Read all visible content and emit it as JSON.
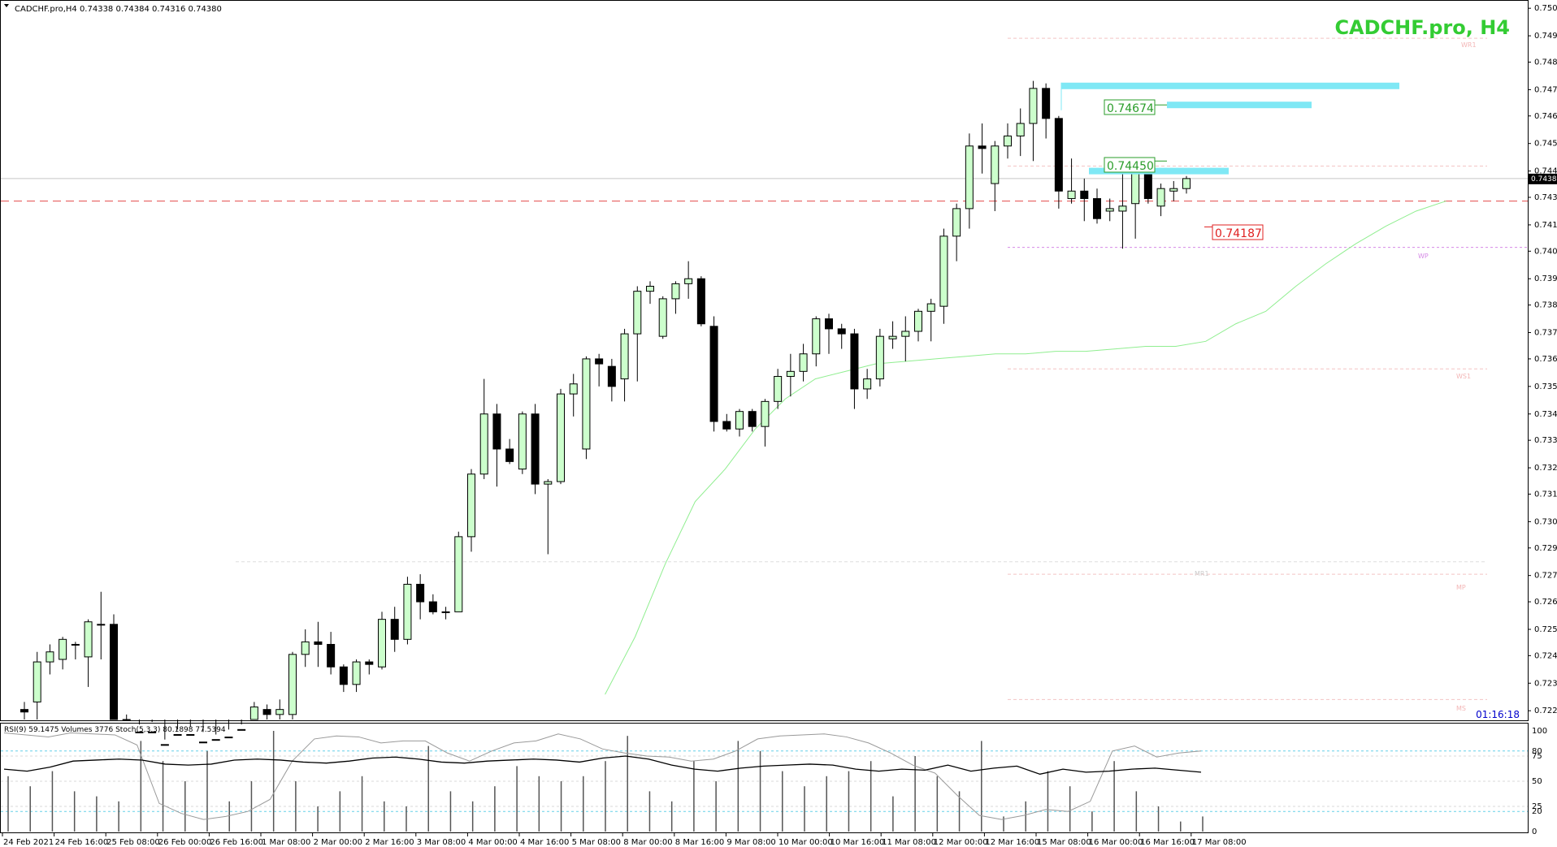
{
  "header": {
    "symbol_info": "CADCHF.pro,H4  0.74338 0.74384 0.74316 0.74380",
    "big_title": "CADCHF.pro, H4",
    "countdown": "01:16:18"
  },
  "subwindow": {
    "label": "RSI(9) 59.1475  Volumes 3776  Stoch(5,3,3) 80.1898 77.5394",
    "levels": [
      "100",
      "80",
      "75",
      "50",
      "25",
      "20",
      "0"
    ]
  },
  "colors": {
    "bull_fill": "#ccffcc",
    "bear_fill": "#000000",
    "ma": "#90ee90",
    "zone": "#7fe8f5",
    "red_line": "#e24b4b",
    "green_label": "#2a9d2a",
    "red_label": "#e02020",
    "title": "#33cc33"
  },
  "annotations": {
    "green_label_1": "0.74674",
    "green_label_2": "0.74450",
    "red_label": "0.74187",
    "current_price": "0.74380",
    "pivot_labels": {
      "wr1_top": "WR1",
      "wp": "WP",
      "ws1": "WS1",
      "mr1": "MR1",
      "mp": "MP",
      "ms": "MS"
    }
  },
  "chart_data": {
    "type": "candlestick",
    "title": "CADCHF.pro, H4",
    "price_axis": [
      "0.75060",
      "0.74950",
      "0.74845",
      "0.74735",
      "0.74630",
      "0.74520",
      "0.74410",
      "0.74305",
      "0.74195",
      "0.74090",
      "0.73980",
      "0.73875",
      "0.73765",
      "0.73660",
      "0.73550",
      "0.73440",
      "0.73335",
      "0.73225",
      "0.73120",
      "0.73010",
      "0.72905",
      "0.72795",
      "0.72690",
      "0.72580",
      "0.72475",
      "0.72365",
      "0.72255"
    ],
    "ylim": [
      0.7222,
      0.7508
    ],
    "time_axis": [
      "24 Feb 2021",
      "24 Feb 16:00",
      "25 Feb 08:00",
      "26 Feb 00:00",
      "26 Feb 16:00",
      "1 Mar 08:00",
      "2 Mar 00:00",
      "2 Mar 16:00",
      "3 Mar 08:00",
      "4 Mar 00:00",
      "4 Mar 16:00",
      "5 Mar 08:00",
      "8 Mar 00:00",
      "8 Mar 16:00",
      "9 Mar 08:00",
      "10 Mar 00:00",
      "10 Mar 16:00",
      "11 Mar 08:00",
      "12 Mar 00:00",
      "12 Mar 16:00",
      "15 Mar 08:00",
      "16 Mar 00:00",
      "16 Mar 16:00",
      "17 Mar 08:00"
    ],
    "candles": [
      {
        "o": 0.7226,
        "h": 0.7229,
        "l": 0.7222,
        "c": 0.7225
      },
      {
        "o": 0.7229,
        "h": 0.7249,
        "l": 0.7222,
        "c": 0.7245
      },
      {
        "o": 0.7245,
        "h": 0.7252,
        "l": 0.724,
        "c": 0.7249
      },
      {
        "o": 0.7246,
        "h": 0.7255,
        "l": 0.7242,
        "c": 0.7254
      },
      {
        "o": 0.7252,
        "h": 0.7253,
        "l": 0.7246,
        "c": 0.7252
      },
      {
        "o": 0.7247,
        "h": 0.7262,
        "l": 0.7235,
        "c": 0.7261
      },
      {
        "o": 0.726,
        "h": 0.7273,
        "l": 0.7246,
        "c": 0.726
      },
      {
        "o": 0.726,
        "h": 0.7264,
        "l": 0.7215,
        "c": 0.7222
      },
      {
        "o": 0.7222,
        "h": 0.7224,
        "l": 0.721,
        "c": 0.7214
      },
      {
        "o": 0.7214,
        "h": 0.722,
        "l": 0.721,
        "c": 0.7217
      },
      {
        "o": 0.7217,
        "h": 0.7221,
        "l": 0.7208,
        "c": 0.721
      },
      {
        "o": 0.721,
        "h": 0.7214,
        "l": 0.7205,
        "c": 0.7212
      },
      {
        "o": 0.7212,
        "h": 0.7218,
        "l": 0.7208,
        "c": 0.7216
      },
      {
        "o": 0.7216,
        "h": 0.7219,
        "l": 0.721,
        "c": 0.7213
      },
      {
        "o": 0.7213,
        "h": 0.7217,
        "l": 0.7208,
        "c": 0.7211
      },
      {
        "o": 0.7211,
        "h": 0.7216,
        "l": 0.7207,
        "c": 0.7214
      },
      {
        "o": 0.7214,
        "h": 0.7218,
        "l": 0.7209,
        "c": 0.7215
      },
      {
        "o": 0.7215,
        "h": 0.722,
        "l": 0.721,
        "c": 0.7218
      },
      {
        "o": 0.7218,
        "h": 0.7229,
        "l": 0.7215,
        "c": 0.7227
      },
      {
        "o": 0.7226,
        "h": 0.7228,
        "l": 0.722,
        "c": 0.7224
      },
      {
        "o": 0.7224,
        "h": 0.723,
        "l": 0.7218,
        "c": 0.7226
      },
      {
        "o": 0.7224,
        "h": 0.7249,
        "l": 0.7222,
        "c": 0.7248
      },
      {
        "o": 0.7248,
        "h": 0.7258,
        "l": 0.7243,
        "c": 0.7253
      },
      {
        "o": 0.7253,
        "h": 0.7261,
        "l": 0.7243,
        "c": 0.7252
      },
      {
        "o": 0.7252,
        "h": 0.7257,
        "l": 0.724,
        "c": 0.7243
      },
      {
        "o": 0.7243,
        "h": 0.7244,
        "l": 0.7233,
        "c": 0.7236
      },
      {
        "o": 0.7236,
        "h": 0.7246,
        "l": 0.7233,
        "c": 0.7245
      },
      {
        "o": 0.7245,
        "h": 0.7246,
        "l": 0.724,
        "c": 0.7244
      },
      {
        "o": 0.7243,
        "h": 0.7265,
        "l": 0.7242,
        "c": 0.7262
      },
      {
        "o": 0.7262,
        "h": 0.7267,
        "l": 0.7249,
        "c": 0.7254
      },
      {
        "o": 0.7254,
        "h": 0.7279,
        "l": 0.7252,
        "c": 0.7276
      },
      {
        "o": 0.7276,
        "h": 0.728,
        "l": 0.7262,
        "c": 0.7269
      },
      {
        "o": 0.7269,
        "h": 0.7272,
        "l": 0.7264,
        "c": 0.7265
      },
      {
        "o": 0.7265,
        "h": 0.7267,
        "l": 0.7262,
        "c": 0.7265
      },
      {
        "o": 0.7265,
        "h": 0.7297,
        "l": 0.7265,
        "c": 0.7295
      },
      {
        "o": 0.7295,
        "h": 0.7322,
        "l": 0.7289,
        "c": 0.732
      },
      {
        "o": 0.732,
        "h": 0.7358,
        "l": 0.7318,
        "c": 0.7344
      },
      {
        "o": 0.7344,
        "h": 0.7348,
        "l": 0.7315,
        "c": 0.733
      },
      {
        "o": 0.733,
        "h": 0.7334,
        "l": 0.7324,
        "c": 0.7325
      },
      {
        "o": 0.7322,
        "h": 0.7345,
        "l": 0.732,
        "c": 0.7344
      },
      {
        "o": 0.7344,
        "h": 0.7348,
        "l": 0.7312,
        "c": 0.7316
      },
      {
        "o": 0.7316,
        "h": 0.7318,
        "l": 0.7288,
        "c": 0.7317
      },
      {
        "o": 0.7317,
        "h": 0.7354,
        "l": 0.7316,
        "c": 0.7352
      },
      {
        "o": 0.7352,
        "h": 0.736,
        "l": 0.7343,
        "c": 0.7356
      },
      {
        "o": 0.733,
        "h": 0.7367,
        "l": 0.7326,
        "c": 0.7366
      },
      {
        "o": 0.7366,
        "h": 0.7368,
        "l": 0.7355,
        "c": 0.7364
      },
      {
        "o": 0.7363,
        "h": 0.7366,
        "l": 0.7349,
        "c": 0.7355
      },
      {
        "o": 0.7358,
        "h": 0.7378,
        "l": 0.7349,
        "c": 0.7376
      },
      {
        "o": 0.7376,
        "h": 0.7395,
        "l": 0.7357,
        "c": 0.7393
      },
      {
        "o": 0.7393,
        "h": 0.7397,
        "l": 0.7388,
        "c": 0.7395
      },
      {
        "o": 0.7375,
        "h": 0.7391,
        "l": 0.7374,
        "c": 0.739
      },
      {
        "o": 0.739,
        "h": 0.7397,
        "l": 0.7384,
        "c": 0.7396
      },
      {
        "o": 0.7396,
        "h": 0.7405,
        "l": 0.739,
        "c": 0.7398
      },
      {
        "o": 0.7398,
        "h": 0.7399,
        "l": 0.7379,
        "c": 0.738
      },
      {
        "o": 0.7379,
        "h": 0.7383,
        "l": 0.7337,
        "c": 0.7341
      },
      {
        "o": 0.7341,
        "h": 0.7344,
        "l": 0.7337,
        "c": 0.7338
      },
      {
        "o": 0.7338,
        "h": 0.7346,
        "l": 0.7335,
        "c": 0.7345
      },
      {
        "o": 0.7345,
        "h": 0.7346,
        "l": 0.7337,
        "c": 0.7339
      },
      {
        "o": 0.7339,
        "h": 0.735,
        "l": 0.7331,
        "c": 0.7349
      },
      {
        "o": 0.7349,
        "h": 0.7362,
        "l": 0.7346,
        "c": 0.7359
      },
      {
        "o": 0.7359,
        "h": 0.7368,
        "l": 0.7351,
        "c": 0.7361
      },
      {
        "o": 0.7361,
        "h": 0.7372,
        "l": 0.7357,
        "c": 0.7368
      },
      {
        "o": 0.7368,
        "h": 0.7383,
        "l": 0.7363,
        "c": 0.7382
      },
      {
        "o": 0.7382,
        "h": 0.7384,
        "l": 0.7368,
        "c": 0.7378
      },
      {
        "o": 0.7378,
        "h": 0.738,
        "l": 0.737,
        "c": 0.7376
      },
      {
        "o": 0.7376,
        "h": 0.7378,
        "l": 0.7346,
        "c": 0.7354
      },
      {
        "o": 0.7354,
        "h": 0.7362,
        "l": 0.735,
        "c": 0.7358
      },
      {
        "o": 0.7358,
        "h": 0.7378,
        "l": 0.7355,
        "c": 0.7375
      },
      {
        "o": 0.7374,
        "h": 0.7381,
        "l": 0.737,
        "c": 0.7375
      },
      {
        "o": 0.7375,
        "h": 0.7383,
        "l": 0.7365,
        "c": 0.7377
      },
      {
        "o": 0.7377,
        "h": 0.7386,
        "l": 0.7373,
        "c": 0.7385
      },
      {
        "o": 0.7385,
        "h": 0.739,
        "l": 0.7373,
        "c": 0.7388
      },
      {
        "o": 0.7387,
        "h": 0.7418,
        "l": 0.738,
        "c": 0.7415
      },
      {
        "o": 0.7415,
        "h": 0.7428,
        "l": 0.7405,
        "c": 0.7426
      },
      {
        "o": 0.7426,
        "h": 0.7456,
        "l": 0.7418,
        "c": 0.7451
      },
      {
        "o": 0.7451,
        "h": 0.746,
        "l": 0.744,
        "c": 0.745
      },
      {
        "o": 0.7436,
        "h": 0.7453,
        "l": 0.7425,
        "c": 0.7451
      },
      {
        "o": 0.7451,
        "h": 0.746,
        "l": 0.7446,
        "c": 0.7455
      },
      {
        "o": 0.7455,
        "h": 0.7466,
        "l": 0.7447,
        "c": 0.746
      },
      {
        "o": 0.746,
        "h": 0.7477,
        "l": 0.7445,
        "c": 0.7474
      },
      {
        "o": 0.7474,
        "h": 0.7476,
        "l": 0.7454,
        "c": 0.7462
      },
      {
        "o": 0.7462,
        "h": 0.7463,
        "l": 0.7426,
        "c": 0.7433
      },
      {
        "o": 0.743,
        "h": 0.7446,
        "l": 0.7428,
        "c": 0.7433
      },
      {
        "o": 0.7433,
        "h": 0.7438,
        "l": 0.7421,
        "c": 0.743
      },
      {
        "o": 0.743,
        "h": 0.7434,
        "l": 0.742,
        "c": 0.7422
      },
      {
        "o": 0.7425,
        "h": 0.743,
        "l": 0.7421,
        "c": 0.7426
      },
      {
        "o": 0.7425,
        "h": 0.744,
        "l": 0.741,
        "c": 0.7427
      },
      {
        "o": 0.7428,
        "h": 0.7442,
        "l": 0.7414,
        "c": 0.7441
      },
      {
        "o": 0.7441,
        "h": 0.7442,
        "l": 0.7428,
        "c": 0.743
      },
      {
        "o": 0.7427,
        "h": 0.7436,
        "l": 0.7423,
        "c": 0.7434
      },
      {
        "o": 0.7433,
        "h": 0.7437,
        "l": 0.7429,
        "c": 0.7434
      },
      {
        "o": 0.7434,
        "h": 0.7439,
        "l": 0.7432,
        "c": 0.7438
      }
    ],
    "moving_average": [
      {
        "i": 58,
        "v": 0.7232
      },
      {
        "i": 61,
        "v": 0.7255
      },
      {
        "i": 64,
        "v": 0.7284
      },
      {
        "i": 67,
        "v": 0.7309
      },
      {
        "i": 70,
        "v": 0.7322
      },
      {
        "i": 73,
        "v": 0.7338
      },
      {
        "i": 76,
        "v": 0.735
      },
      {
        "i": 79,
        "v": 0.7358
      },
      {
        "i": 82,
        "v": 0.7361
      },
      {
        "i": 85,
        "v": 0.7364
      },
      {
        "i": 88,
        "v": 0.7365
      },
      {
        "i": 91,
        "v": 0.7366
      },
      {
        "i": 94,
        "v": 0.7367
      },
      {
        "i": 97,
        "v": 0.7368
      },
      {
        "i": 100,
        "v": 0.7368
      },
      {
        "i": 103,
        "v": 0.7369
      },
      {
        "i": 106,
        "v": 0.7369
      },
      {
        "i": 109,
        "v": 0.737
      },
      {
        "i": 112,
        "v": 0.7371
      },
      {
        "i": 115,
        "v": 0.7371
      },
      {
        "i": 118,
        "v": 0.7373
      },
      {
        "i": 121,
        "v": 0.738
      },
      {
        "i": 124,
        "v": 0.7385
      },
      {
        "i": 127,
        "v": 0.7395
      },
      {
        "i": 130,
        "v": 0.7404
      },
      {
        "i": 133,
        "v": 0.7412
      },
      {
        "i": 136,
        "v": 0.7419
      },
      {
        "i": 139,
        "v": 0.7425
      },
      {
        "i": 142,
        "v": 0.7429
      }
    ],
    "levels": {
      "red_dashed": 0.7429,
      "current": 0.7438,
      "zone_top": 0.7475,
      "zone_mid": 0.74674,
      "zone_low": 0.7441,
      "red_label_price": 0.74187,
      "pivot_wp": 0.74105,
      "pivot_wr1": 0.7494,
      "pivot_ws1": 0.7362,
      "pivot_mr1": 0.7285,
      "pivot_mp": 0.728,
      "pivot_ms": 0.723
    },
    "subwindow": {
      "ylim": [
        0,
        100
      ],
      "rsi": [
        62,
        60,
        64,
        70,
        71,
        72,
        71,
        67,
        66,
        67,
        71,
        72,
        71,
        69,
        68,
        70,
        73,
        74,
        72,
        69,
        68,
        70,
        71,
        72,
        71,
        69,
        73,
        75,
        72,
        66,
        62,
        60,
        63,
        65,
        66,
        67,
        66,
        62,
        60,
        62,
        61,
        66,
        60,
        63,
        65,
        57,
        62,
        59,
        60,
        62,
        63,
        61,
        59
      ],
      "stoch": [
        98,
        96,
        94,
        98,
        97,
        96,
        86,
        28,
        18,
        12,
        15,
        20,
        32,
        70,
        92,
        95,
        94,
        88,
        90,
        90,
        78,
        70,
        80,
        88,
        90,
        97,
        92,
        82,
        78,
        75,
        74,
        70,
        72,
        80,
        92,
        95,
        96,
        97,
        94,
        88,
        78,
        66,
        58,
        36,
        16,
        12,
        16,
        22,
        20,
        30,
        80,
        85,
        74,
        78,
        80
      ],
      "volumes": [
        55,
        45,
        60,
        40,
        35,
        30,
        90,
        70,
        50,
        80,
        30,
        50,
        100,
        50,
        25,
        40,
        55,
        30,
        25,
        85,
        40,
        30,
        45,
        65,
        55,
        50,
        55,
        70,
        95,
        40,
        30,
        70,
        50,
        90,
        80,
        60,
        45,
        55,
        60,
        70,
        35,
        75,
        55,
        40,
        90,
        15,
        30,
        60,
        45,
        20,
        70,
        40,
        25,
        10,
        15
      ]
    }
  }
}
